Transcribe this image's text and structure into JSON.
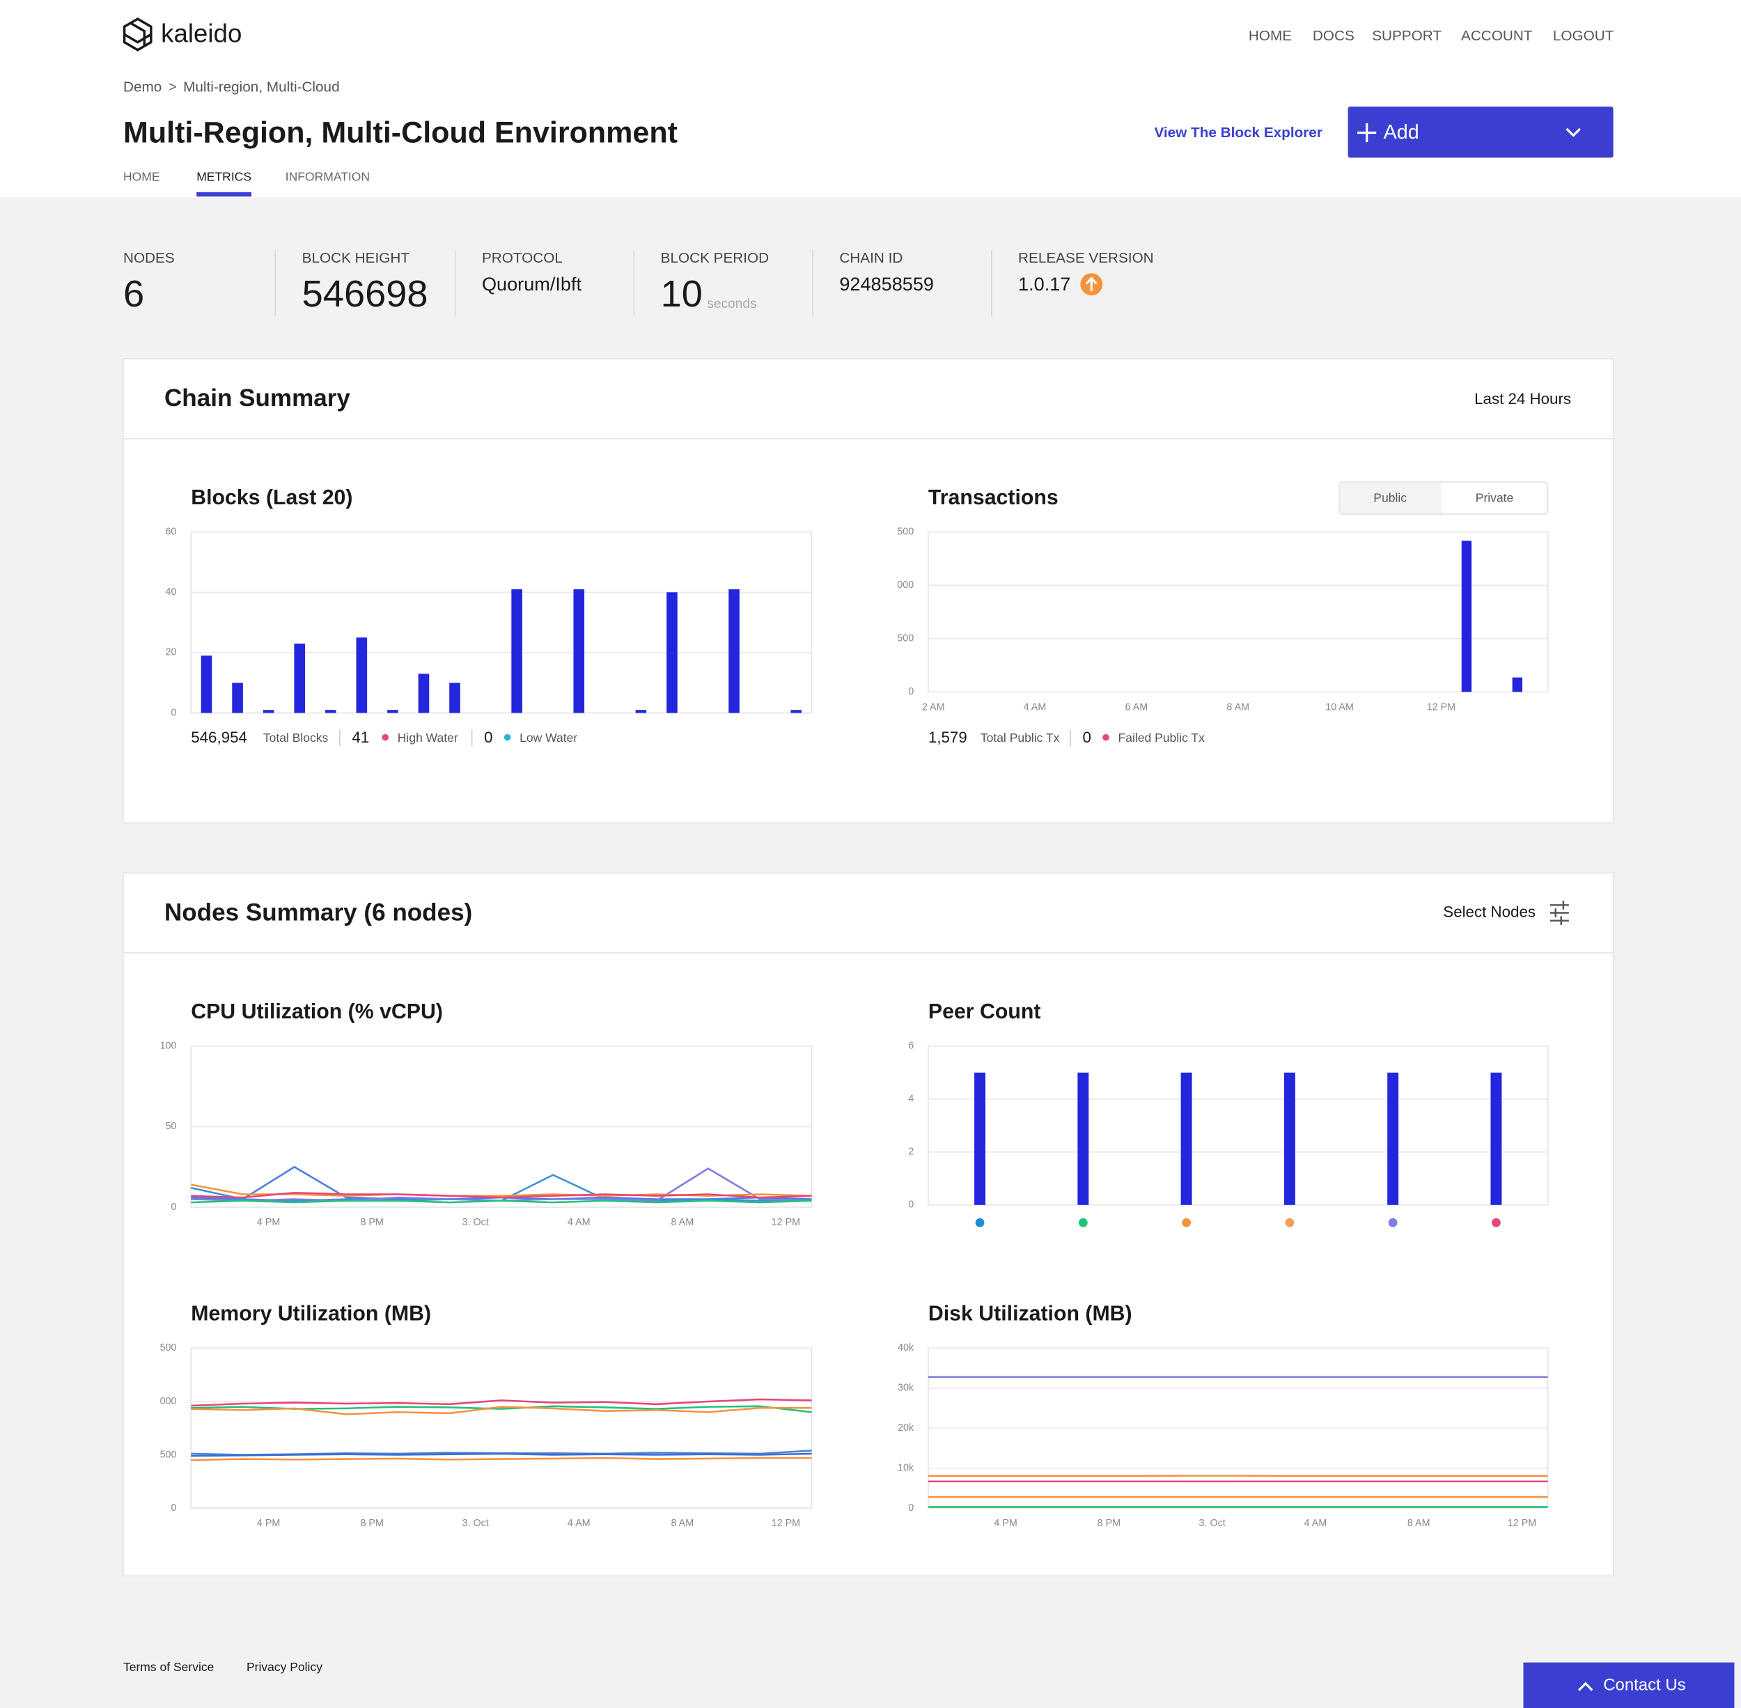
{
  "nav": {
    "logo": "kaleido",
    "links": [
      "HOME",
      "DOCS",
      "SUPPORT",
      "ACCOUNT",
      "LOGOUT"
    ]
  },
  "breadcrumb": {
    "items": [
      "Demo",
      "Multi-region, Multi-Cloud"
    ],
    "separator": ">"
  },
  "header": {
    "title": "Multi-Region, Multi-Cloud Environment",
    "explorer_link": "View The Block Explorer",
    "add_button": "Add"
  },
  "tabs": {
    "items": [
      "HOME",
      "METRICS",
      "INFORMATION"
    ],
    "active": 1
  },
  "stats": [
    {
      "label": "NODES",
      "value": 6
    },
    {
      "label": "BLOCK HEIGHT",
      "value": 546698
    },
    {
      "label": "PROTOCOL",
      "value": "Quorum/Ibft"
    },
    {
      "label": "BLOCK PERIOD",
      "value": 10,
      "unit": "seconds"
    },
    {
      "label": "CHAIN ID",
      "value": 924858559
    },
    {
      "label": "RELEASE VERSION",
      "value": "1.0.17"
    }
  ],
  "chain_summary": {
    "title": "Chain Summary",
    "range": "Last 24 Hours",
    "blocks": {
      "type": "bar",
      "title": "Blocks (Last 20)",
      "color": "#2326dc",
      "categories": [
        null,
        null,
        null,
        null,
        null,
        null,
        null,
        null,
        null,
        null,
        null,
        null,
        null,
        null,
        null,
        null,
        null,
        null,
        null,
        null
      ],
      "values": [
        19,
        10,
        1,
        23,
        1,
        25,
        1,
        13,
        10,
        0,
        41,
        0,
        41,
        0,
        1,
        40,
        0,
        41,
        0,
        1
      ],
      "ylim": [
        0,
        60
      ],
      "yticks": [
        0,
        20,
        40,
        60
      ],
      "grid": true,
      "footer": {
        "total": "546,954",
        "total_label": "Total Blocks",
        "high": 41,
        "high_label": "High Water",
        "low": 0,
        "low_label": "Low Water"
      }
    },
    "transactions": {
      "type": "bar",
      "title": "Transactions",
      "color": "#2326dc",
      "toggle": {
        "items": [
          "Public",
          "Private"
        ],
        "active": 0
      },
      "x": [
        12.5,
        13.5
      ],
      "values": [
        1417,
        135
      ],
      "xlim": [
        1.9,
        14.1
      ],
      "xticks": [
        {
          "value": 2,
          "label": "2 AM"
        },
        {
          "value": 4,
          "label": "4 AM"
        },
        {
          "value": 6,
          "label": "6 AM"
        },
        {
          "value": 8,
          "label": "8 AM"
        },
        {
          "value": 10,
          "label": "10 AM"
        },
        {
          "value": 12,
          "label": "12 PM"
        }
      ],
      "ylim": [
        0,
        1500
      ],
      "yticks": [
        0,
        500,
        {
          "value": 1000,
          "label": "000"
        },
        {
          "value": 1500,
          "label": "500"
        }
      ],
      "grid": true,
      "footer": {
        "total": "1,579",
        "total_label": "Total Public Tx",
        "failed": 0,
        "failed_label": "Failed Public Tx"
      }
    }
  },
  "nodes_summary": {
    "title": "Nodes Summary (6 nodes)",
    "select": "Select Nodes",
    "cpu": {
      "type": "line",
      "title": "CPU Utilization (% vCPU)",
      "x": [
        13,
        15,
        17,
        19,
        21,
        23,
        25,
        27,
        29,
        31,
        33,
        35,
        37
      ],
      "xlim": [
        13,
        37
      ],
      "xticks": [
        {
          "value": 16,
          "label": "4 PM"
        },
        {
          "value": 20,
          "label": "8 PM"
        },
        {
          "value": 24,
          "label": "3. Oct"
        },
        {
          "value": 28,
          "label": "4 AM"
        },
        {
          "value": 32,
          "label": "8 AM"
        },
        {
          "value": 36,
          "label": "12 PM"
        }
      ],
      "ylim": [
        0,
        100
      ],
      "yticks": [
        0,
        50,
        100
      ],
      "grid": true,
      "series": [
        {
          "color": "#4a7fe0",
          "values": [
            6,
            5,
            25,
            6,
            5,
            5,
            6,
            5,
            6,
            5,
            5,
            6,
            5
          ]
        },
        {
          "color": "#3a8fd9",
          "values": [
            12,
            5,
            4,
            5,
            4,
            5,
            4,
            20,
            5,
            4,
            5,
            4,
            5
          ]
        },
        {
          "color": "#7b7fe0",
          "values": [
            5,
            4,
            5,
            4,
            6,
            5,
            4,
            5,
            5,
            4,
            24,
            5,
            4
          ]
        },
        {
          "color": "#f5923e",
          "values": [
            14,
            8,
            8,
            7,
            8,
            7,
            7,
            8,
            7,
            8,
            7,
            8,
            7
          ]
        },
        {
          "color": "#22c17a",
          "values": [
            3,
            4,
            3,
            4,
            4,
            3,
            4,
            3,
            4,
            3,
            4,
            3,
            4
          ]
        },
        {
          "color": "#e8457a",
          "values": [
            7,
            6,
            9,
            8,
            8,
            7,
            6,
            7,
            8,
            7,
            8,
            6,
            7
          ]
        }
      ]
    },
    "peers": {
      "type": "bar",
      "title": "Peer Count",
      "color": "#2326dc",
      "categories": [
        null,
        null,
        null,
        null,
        null,
        null
      ],
      "values": [
        5,
        5,
        5,
        5,
        5,
        5
      ],
      "dot_colors": [
        "#1f8dd6",
        "#22c17a",
        "#f5923e",
        "#f0a050",
        "#7b7fe0",
        "#e8457a"
      ],
      "ylim": [
        0,
        6
      ],
      "yticks": [
        0,
        2,
        4,
        6
      ],
      "grid": true
    },
    "memory": {
      "type": "line",
      "title": "Memory Utilization (MB)",
      "x": [
        13,
        15,
        17,
        19,
        21,
        23,
        25,
        27,
        29,
        31,
        33,
        35,
        37
      ],
      "xlim": [
        13,
        37
      ],
      "xticks": [
        {
          "value": 16,
          "label": "4 PM"
        },
        {
          "value": 20,
          "label": "8 PM"
        },
        {
          "value": 24,
          "label": "3. Oct"
        },
        {
          "value": 28,
          "label": "4 AM"
        },
        {
          "value": 32,
          "label": "8 AM"
        },
        {
          "value": 36,
          "label": "12 PM"
        }
      ],
      "ylim": [
        0,
        1500
      ],
      "yticks": [
        0,
        500,
        {
          "value": 1000,
          "label": "000"
        },
        {
          "value": 1500,
          "label": "500"
        }
      ],
      "grid": true,
      "series": [
        {
          "color": "#e8457a",
          "values": [
            960,
            980,
            990,
            980,
            985,
            975,
            1010,
            990,
            995,
            975,
            1000,
            1020,
            1010
          ]
        },
        {
          "color": "#22c17a",
          "values": [
            940,
            950,
            930,
            935,
            950,
            945,
            930,
            955,
            945,
            930,
            950,
            955,
            900
          ]
        },
        {
          "color": "#f5923e",
          "values": [
            930,
            920,
            935,
            880,
            900,
            890,
            950,
            935,
            910,
            920,
            900,
            940,
            940
          ]
        },
        {
          "color": "#4a7fe0",
          "values": [
            510,
            500,
            505,
            515,
            510,
            520,
            515,
            515,
            510,
            520,
            515,
            510,
            540
          ]
        },
        {
          "color": "#3a6fd0",
          "values": [
            490,
            495,
            500,
            505,
            500,
            505,
            510,
            500,
            505,
            500,
            505,
            500,
            510
          ]
        },
        {
          "color": "#f5923e",
          "values": [
            450,
            460,
            455,
            460,
            465,
            455,
            460,
            465,
            470,
            460,
            465,
            470,
            470
          ]
        }
      ]
    },
    "disk": {
      "type": "line",
      "title": "Disk Utilization (MB)",
      "x": [
        13,
        15,
        17,
        19,
        21,
        23,
        25,
        27,
        29,
        31,
        33,
        35,
        37
      ],
      "xlim": [
        13,
        37
      ],
      "xticks": [
        {
          "value": 16,
          "label": "4 PM"
        },
        {
          "value": 20,
          "label": "8 PM"
        },
        {
          "value": 24,
          "label": "3. Oct"
        },
        {
          "value": 28,
          "label": "4 AM"
        },
        {
          "value": 32,
          "label": "8 AM"
        },
        {
          "value": 36,
          "label": "12 PM"
        }
      ],
      "ylim": [
        0,
        40000
      ],
      "yticks": [
        0,
        {
          "value": 10000,
          "label": "10k"
        },
        {
          "value": 20000,
          "label": "20k"
        },
        {
          "value": 30000,
          "label": "30k"
        },
        {
          "value": 40000,
          "label": "40k"
        }
      ],
      "grid": true,
      "series": [
        {
          "color": "#7b7fe0",
          "values": [
            32800,
            32800,
            32800,
            32800,
            32800,
            32800,
            32800,
            32800,
            32800,
            32800,
            32800,
            32800,
            32800
          ]
        },
        {
          "color": "#f5923e",
          "values": [
            8050,
            8050,
            8050,
            8050,
            8050,
            8100,
            8100,
            8050,
            8050,
            8050,
            8050,
            8050,
            8050
          ]
        },
        {
          "color": "#e8457a",
          "values": [
            6670,
            6670,
            6670,
            6670,
            6670,
            6670,
            6670,
            6670,
            6670,
            6670,
            6670,
            6670,
            6670
          ]
        },
        {
          "color": "#f5923e",
          "values": [
            2780,
            2780,
            2780,
            2780,
            2780,
            2780,
            2780,
            2780,
            2780,
            2780,
            2780,
            2780,
            2780
          ]
        },
        {
          "color": "#22c17a",
          "values": [
            280,
            280,
            280,
            280,
            280,
            280,
            280,
            280,
            280,
            280,
            280,
            280,
            280
          ]
        }
      ]
    }
  },
  "footer": {
    "links": [
      "Terms of Service",
      "Privacy Policy"
    ],
    "contact": "Contact Us"
  }
}
